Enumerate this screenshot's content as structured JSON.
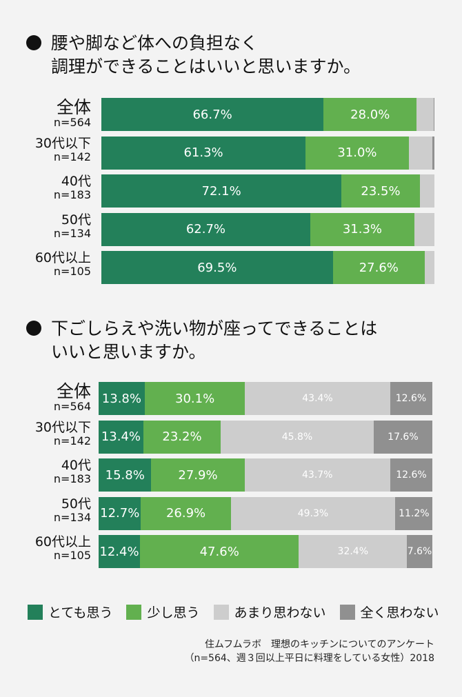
{
  "colors": {
    "very": "#23805a",
    "somewhat": "#62b04f",
    "notmuch": "#cdcdcd",
    "notatall": "#909090"
  },
  "legend": [
    "とても思う",
    "少し思う",
    "あまり思わない",
    "全く思わない"
  ],
  "source": {
    "line1": "住ムフムラボ　理想のキッチンについてのアンケート",
    "line2": "（n=564、週３回以上平日に料理をしている女性）2018"
  },
  "chart_data": [
    {
      "type": "bar",
      "orientation": "horizontal",
      "stacked": true,
      "unit": "%",
      "title_lines": [
        "腰や脚など体への負担なく",
        "調理ができることはいいと思いますか。"
      ],
      "categories": [
        {
          "group": "全体",
          "n": "n=564"
        },
        {
          "group": "30代以下",
          "n": "n=142"
        },
        {
          "group": "40代",
          "n": "n=183"
        },
        {
          "group": "50代",
          "n": "n=134"
        },
        {
          "group": "60代以上",
          "n": "n=105"
        }
      ],
      "series": [
        {
          "name": "とても思う",
          "values": [
            66.7,
            61.3,
            72.1,
            62.7,
            69.5
          ],
          "labels": [
            "66.7%",
            "61.3%",
            "72.1%",
            "62.7%",
            "69.5%"
          ]
        },
        {
          "name": "少し思う",
          "values": [
            28.0,
            31.0,
            23.5,
            31.3,
            27.6
          ],
          "labels": [
            "28.0%",
            "31.0%",
            "23.5%",
            "31.3%",
            "27.6%"
          ]
        },
        {
          "name": "あまり思わない",
          "values": [
            5.0,
            7.0,
            4.4,
            6.0,
            2.9
          ],
          "labels": [
            "",
            "",
            "",
            "",
            ""
          ]
        },
        {
          "name": "全く思わない",
          "values": [
            0.3,
            0.7,
            0,
            0,
            0
          ],
          "labels": [
            "",
            "",
            "",
            "",
            ""
          ]
        }
      ]
    },
    {
      "type": "bar",
      "orientation": "horizontal",
      "stacked": true,
      "unit": "%",
      "title_lines": [
        "下ごしらえや洗い物が座ってできることは",
        "いいと思いますか。"
      ],
      "categories": [
        {
          "group": "全体",
          "n": "n=564"
        },
        {
          "group": "30代以下",
          "n": "n=142"
        },
        {
          "group": "40代",
          "n": "n=183"
        },
        {
          "group": "50代",
          "n": "n=134"
        },
        {
          "group": "60代以上",
          "n": "n=105"
        }
      ],
      "series": [
        {
          "name": "とても思う",
          "values": [
            13.8,
            13.4,
            15.8,
            12.7,
            12.4
          ],
          "labels": [
            "13.8%",
            "13.4%",
            "15.8%",
            "12.7%",
            "12.4%"
          ]
        },
        {
          "name": "少し思う",
          "values": [
            30.1,
            23.2,
            27.9,
            26.9,
            47.6
          ],
          "labels": [
            "30.1%",
            "23.2%",
            "27.9%",
            "26.9%",
            "47.6%"
          ]
        },
        {
          "name": "あまり思わない",
          "values": [
            43.4,
            45.8,
            43.7,
            49.3,
            32.4
          ],
          "labels": [
            "43.4%",
            "45.8%",
            "43.7%",
            "49.3%",
            "32.4%"
          ]
        },
        {
          "name": "全く思わない",
          "values": [
            12.6,
            17.6,
            12.6,
            11.2,
            7.6
          ],
          "labels": [
            "12.6%",
            "17.6%",
            "12.6%",
            "11.2%",
            "7.6%"
          ]
        }
      ]
    }
  ]
}
